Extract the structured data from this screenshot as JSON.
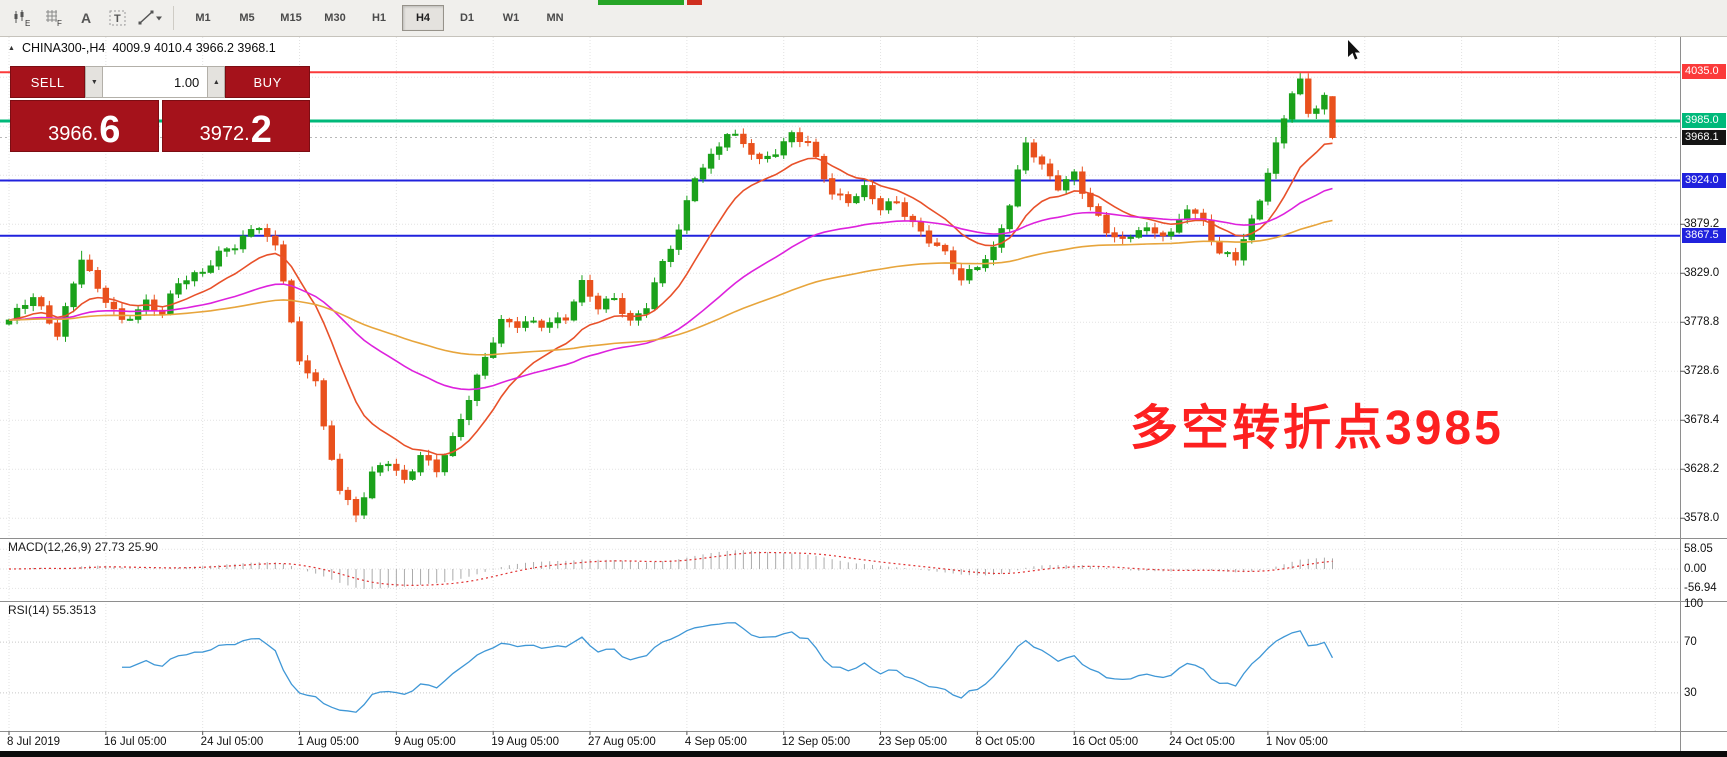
{
  "toolbar": {
    "tools": [
      {
        "id": "indicator-e-tool",
        "glyph": "E"
      },
      {
        "id": "grid-f-tool",
        "glyph": "F"
      },
      {
        "id": "text-tool",
        "glyph": "A"
      },
      {
        "id": "label-tool",
        "glyph": "T"
      },
      {
        "id": "draw-tool",
        "glyph": ""
      }
    ],
    "timeframes": [
      {
        "label": "M1",
        "active": false
      },
      {
        "label": "M5",
        "active": false
      },
      {
        "label": "M15",
        "active": false
      },
      {
        "label": "M30",
        "active": false
      },
      {
        "label": "H1",
        "active": false
      },
      {
        "label": "H4",
        "active": true
      },
      {
        "label": "D1",
        "active": false
      },
      {
        "label": "W1",
        "active": false
      },
      {
        "label": "MN",
        "active": false
      }
    ]
  },
  "chart_header": {
    "collapse_arrow": "▲",
    "symbol_period": "CHINA300-,H4",
    "ohlc_text": "4009.9 4010.4 3966.2 3968.1"
  },
  "trade_panel": {
    "sell_label": "SELL",
    "buy_label": "BUY",
    "amount": "1.00",
    "sell_price_main": "3966.",
    "sell_price_big": "6",
    "buy_price_main": "3972.",
    "buy_price_big": "2"
  },
  "annotation": {
    "text": "多空转折点3985"
  },
  "price_axis": {
    "ticks": [
      {
        "label": "3879.2",
        "price": 3879.2
      },
      {
        "label": "3829.0",
        "price": 3829.0
      },
      {
        "label": "3778.8",
        "price": 3778.8
      },
      {
        "label": "3728.6",
        "price": 3728.6
      },
      {
        "label": "3678.4",
        "price": 3678.4
      },
      {
        "label": "3628.2",
        "price": 3628.2
      },
      {
        "label": "3578.0",
        "price": 3578.0
      }
    ],
    "level_labels": [
      {
        "label": "4035.0",
        "price": 4035.0,
        "bg": "#fb3a3a",
        "line": "#fb3a3a",
        "width": 2
      },
      {
        "label": "3985.0",
        "price": 3985.0,
        "bg": "#00b97a",
        "line": "#00b97a",
        "width": 3
      },
      {
        "label": "3924.0",
        "price": 3924.0,
        "bg": "#2022dd",
        "line": "#2022dd",
        "width": 2
      },
      {
        "label": "3867.5",
        "price": 3867.5,
        "bg": "#2022dd",
        "line": "#2022dd",
        "width": 2
      }
    ],
    "current_price": {
      "label": "3968.1",
      "price": 3968.1,
      "bg": "#141414"
    }
  },
  "macd_panel": {
    "label": "MACD(12,26,9) 27.73 25.90",
    "axis_labels": [
      {
        "label": "58.05",
        "value": 58.05
      },
      {
        "label": "0.00",
        "value": 0
      },
      {
        "label": "-56.94",
        "value": -56.94
      }
    ]
  },
  "rsi_panel": {
    "label": "RSI(14) 55.3513",
    "axis_labels": [
      {
        "label": "100",
        "value": 100
      },
      {
        "label": "70",
        "value": 70
      },
      {
        "label": "30",
        "value": 30
      }
    ],
    "levels": [
      70,
      30
    ]
  },
  "time_axis": {
    "labels": [
      "8 Jul 2019",
      "16 Jul 05:00",
      "24 Jul 05:00",
      "1 Aug 05:00",
      "9 Aug 05:00",
      "19 Aug 05:00",
      "27 Aug 05:00",
      "4 Sep 05:00",
      "12 Sep 05:00",
      "23 Sep 05:00",
      "8 Oct 05:00",
      "16 Oct 05:00",
      "24 Oct 05:00",
      "1 Nov 05:00"
    ]
  },
  "chart_data": {
    "type": "candlestick",
    "symbol": "CHINA300-",
    "timeframe": "H4",
    "current_ohlc": {
      "open": 4009.9,
      "high": 4010.4,
      "low": 3966.2,
      "close": 3968.1
    },
    "bid": 3966.6,
    "ask": 3972.2,
    "price_range_visible": [
      3557,
      4068
    ],
    "candle_count": 165,
    "horizontal_lines": [
      4035.0,
      3985.0,
      3924.0,
      3867.5
    ],
    "close_waypoints": [
      [
        0,
        3781
      ],
      [
        3,
        3803
      ],
      [
        6,
        3769
      ],
      [
        9,
        3845
      ],
      [
        11,
        3810
      ],
      [
        14,
        3781
      ],
      [
        17,
        3800
      ],
      [
        19,
        3786
      ],
      [
        21,
        3818
      ],
      [
        24,
        3833
      ],
      [
        26,
        3850
      ],
      [
        28,
        3855
      ],
      [
        31,
        3878
      ],
      [
        33,
        3858
      ],
      [
        34,
        3826
      ],
      [
        36,
        3735
      ],
      [
        38,
        3718
      ],
      [
        39,
        3668
      ],
      [
        41,
        3611
      ],
      [
        43,
        3583
      ],
      [
        45,
        3622
      ],
      [
        47,
        3634
      ],
      [
        49,
        3616
      ],
      [
        51,
        3645
      ],
      [
        53,
        3628
      ],
      [
        55,
        3656
      ],
      [
        57,
        3700
      ],
      [
        59,
        3745
      ],
      [
        61,
        3781
      ],
      [
        63,
        3775
      ],
      [
        66,
        3776
      ],
      [
        69,
        3786
      ],
      [
        71,
        3818
      ],
      [
        73,
        3792
      ],
      [
        75,
        3803
      ],
      [
        77,
        3781
      ],
      [
        79,
        3797
      ],
      [
        81,
        3837
      ],
      [
        83,
        3871
      ],
      [
        85,
        3930
      ],
      [
        87,
        3950
      ],
      [
        89,
        3972
      ],
      [
        91,
        3960
      ],
      [
        93,
        3944
      ],
      [
        95,
        3956
      ],
      [
        97,
        3972
      ],
      [
        99,
        3960
      ],
      [
        102,
        3911
      ],
      [
        104,
        3906
      ],
      [
        106,
        3916
      ],
      [
        108,
        3894
      ],
      [
        110,
        3900
      ],
      [
        112,
        3882
      ],
      [
        114,
        3865
      ],
      [
        116,
        3848
      ],
      [
        118,
        3820
      ],
      [
        120,
        3838
      ],
      [
        122,
        3855
      ],
      [
        124,
        3900
      ],
      [
        126,
        3960
      ],
      [
        128,
        3938
      ],
      [
        130,
        3920
      ],
      [
        132,
        3932
      ],
      [
        134,
        3895
      ],
      [
        136,
        3871
      ],
      [
        138,
        3863
      ],
      [
        140,
        3877
      ],
      [
        142,
        3870
      ],
      [
        144,
        3866
      ],
      [
        146,
        3897
      ],
      [
        148,
        3884
      ],
      [
        150,
        3850
      ],
      [
        152,
        3843
      ],
      [
        154,
        3880
      ],
      [
        155,
        3905
      ],
      [
        156,
        3935
      ],
      [
        157,
        3962
      ],
      [
        158,
        3990
      ],
      [
        159,
        4016
      ],
      [
        160,
        4024
      ],
      [
        161,
        3990
      ],
      [
        162,
        3998
      ],
      [
        163,
        4008
      ],
      [
        164,
        3968
      ]
    ],
    "moving_averages": [
      {
        "period": 13,
        "color": "#e8512a"
      },
      {
        "period": 45,
        "color": "#dd22dd"
      },
      {
        "period": 100,
        "color": "#e7a53c"
      }
    ],
    "macd": {
      "fast": 12,
      "slow": 26,
      "signal": 9,
      "current_macd": 27.73,
      "current_signal": 25.9,
      "histogram_color": "#ababab",
      "signal_color": "#e03131"
    },
    "rsi": {
      "period": 14,
      "current": 55.3513,
      "color": "#3f97d6"
    },
    "colors": {
      "up": "#1ba11b",
      "down": "#e9511d",
      "background": "#ffffff"
    }
  }
}
